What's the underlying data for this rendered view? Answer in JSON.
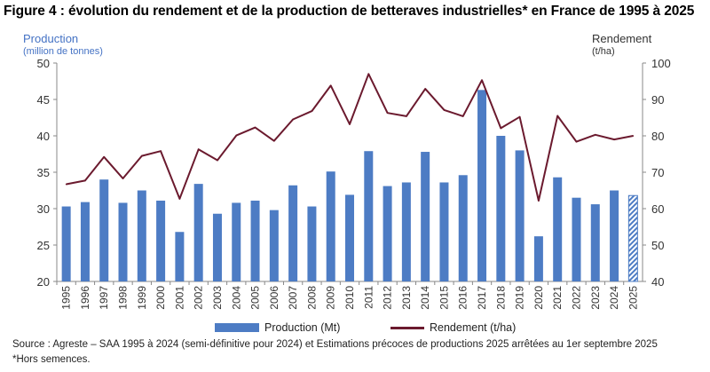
{
  "header": {
    "title": "Figure 4 : évolution du rendement et de la production de betteraves industrielles* en France de 1995 à 2025"
  },
  "axes": {
    "left_title": "Production",
    "left_unit": "(million de tonnes)",
    "right_title": "Rendement",
    "right_unit": "(t/ha)"
  },
  "legend": {
    "bar_label": "Production (Mt)",
    "line_label": "Rendement (t/ha)"
  },
  "footer": {
    "source": "Source : Agreste – SAA 1995 à 2024 (semi-définitive pour 2024) et Estimations précoces de productions 2025 arrêtées au 1er septembre 2025",
    "note": "*Hors semences."
  },
  "colors": {
    "bar": "#4d7cc4",
    "line": "#6b1a2e",
    "axis_text": "#333333"
  },
  "chart_data": {
    "type": "bar",
    "categories": [
      "1995",
      "1996",
      "1997",
      "1998",
      "1999",
      "2000",
      "2001",
      "2002",
      "2003",
      "2004",
      "2005",
      "2006",
      "2007",
      "2008",
      "2009",
      "2010",
      "2011",
      "2012",
      "2013",
      "2014",
      "2015",
      "2016",
      "2017",
      "2018",
      "2019",
      "2020",
      "2021",
      "2022",
      "2023",
      "2024",
      "2025"
    ],
    "series": [
      {
        "name": "Production (Mt)",
        "type": "bar",
        "axis": "left",
        "values": [
          30.3,
          30.9,
          34.0,
          30.8,
          32.5,
          31.1,
          26.8,
          33.4,
          29.3,
          30.8,
          31.1,
          29.8,
          33.2,
          30.3,
          35.1,
          31.9,
          37.9,
          33.1,
          33.6,
          37.8,
          33.6,
          34.6,
          46.3,
          40.0,
          38.0,
          26.2,
          34.3,
          31.5,
          30.6,
          32.5,
          31.8
        ],
        "estimated": [
          "2025"
        ]
      },
      {
        "name": "Rendement (t/ha)",
        "type": "line",
        "axis": "right",
        "values": [
          66.7,
          67.7,
          74.2,
          68.3,
          74.5,
          75.8,
          62.7,
          76.3,
          73.3,
          80.1,
          82.3,
          78.6,
          84.5,
          86.8,
          93.8,
          83.2,
          97.0,
          86.3,
          85.4,
          92.9,
          87.1,
          85.4,
          95.3,
          82.1,
          85.2,
          62.2,
          85.5,
          78.4,
          80.3,
          79.0,
          80.0
        ]
      }
    ],
    "y_left": {
      "lim": [
        20,
        50
      ],
      "ticks": [
        "20",
        "25",
        "30",
        "35",
        "40",
        "45",
        "50"
      ]
    },
    "y_right": {
      "lim": [
        40,
        100
      ],
      "ticks": [
        "40",
        "50",
        "60",
        "70",
        "80",
        "90",
        "100"
      ]
    },
    "grid": false,
    "legend_position": "bottom"
  }
}
